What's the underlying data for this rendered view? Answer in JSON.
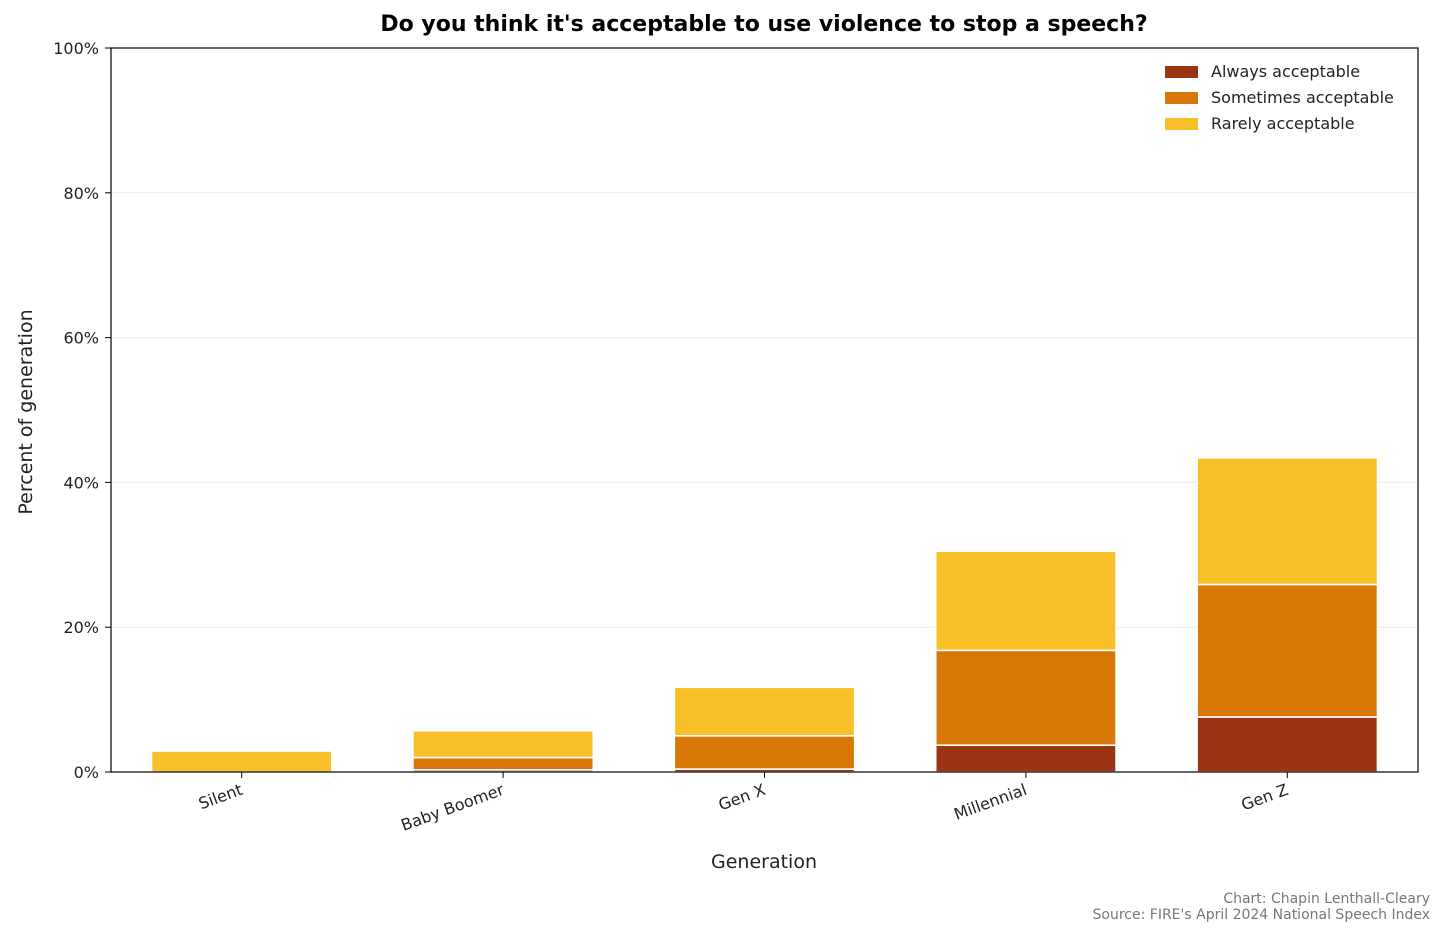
{
  "chart_data": {
    "type": "bar",
    "stacked": true,
    "title": "Do you think it's acceptable to use violence to stop a speech?",
    "xlabel": "Generation",
    "ylabel": "Percent of generation",
    "categories": [
      "Silent",
      "Baby Boomer",
      "Gen X",
      "Millennial",
      "Gen Z"
    ],
    "ylim": [
      0,
      100
    ],
    "yticks": [
      0,
      20,
      40,
      60,
      80,
      100
    ],
    "ytick_labels": [
      "0%",
      "20%",
      "40%",
      "60%",
      "80%",
      "100%"
    ],
    "grid": true,
    "legend_position": "top-right",
    "series": [
      {
        "name": "Always acceptable",
        "color": "#9a3412",
        "values": [
          0.0,
          0.3,
          0.4,
          3.7,
          7.6
        ]
      },
      {
        "name": "Sometimes acceptable",
        "color": "#d97706",
        "values": [
          0.0,
          1.7,
          4.6,
          13.1,
          18.3
        ]
      },
      {
        "name": "Rarely acceptable",
        "color": "#f8bf28",
        "values": [
          2.9,
          3.7,
          6.7,
          13.7,
          17.5
        ]
      }
    ],
    "credit_lines": [
      "Chart: Chapin Lenthall-Cleary",
      "Source: FIRE's April 2024 National Speech Index"
    ]
  }
}
